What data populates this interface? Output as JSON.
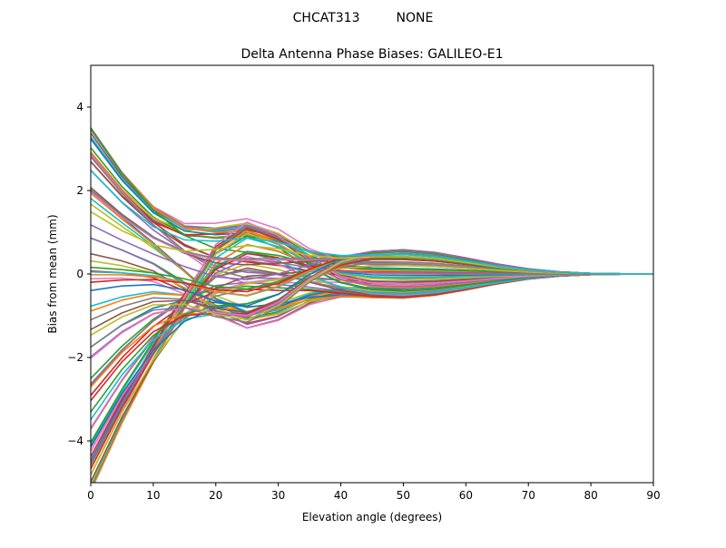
{
  "figure": {
    "suptitle": "CHCAT313         NONE"
  },
  "chart_data": {
    "type": "line",
    "title": "Delta Antenna Phase Biases: GALILEO-E1",
    "xlabel": "Elevation angle (degrees)",
    "ylabel": "Bias from mean (mm)",
    "xlim": [
      0,
      90
    ],
    "ylim": [
      -5,
      5
    ],
    "x_ticks": [
      0,
      10,
      20,
      30,
      40,
      50,
      60,
      70,
      80,
      90
    ],
    "y_ticks": [
      -4,
      -2,
      0,
      2,
      4
    ],
    "x_tick_labels": [
      "0",
      "10",
      "20",
      "30",
      "40",
      "50",
      "60",
      "70",
      "80",
      "90"
    ],
    "y_tick_labels": [
      "−4",
      "−2",
      "0",
      "2",
      "4"
    ],
    "grid": false,
    "legend": "none",
    "x": [
      0,
      5,
      10,
      15,
      20,
      25,
      30,
      35,
      40,
      45,
      50,
      55,
      60,
      65,
      70,
      75,
      80,
      85,
      90
    ],
    "palette": [
      "#1f77b4",
      "#ff7f0e",
      "#2ca02c",
      "#d62728",
      "#9467bd",
      "#8c564b",
      "#e377c2",
      "#7f7f7f",
      "#bcbd22",
      "#17becf"
    ],
    "series_generator": {
      "count": 80,
      "start_range_mm": [
        -5.2,
        3.5
      ],
      "note": "Family of ~80 per-azimuth bias curves converging to 0 at 90 degrees"
    }
  }
}
